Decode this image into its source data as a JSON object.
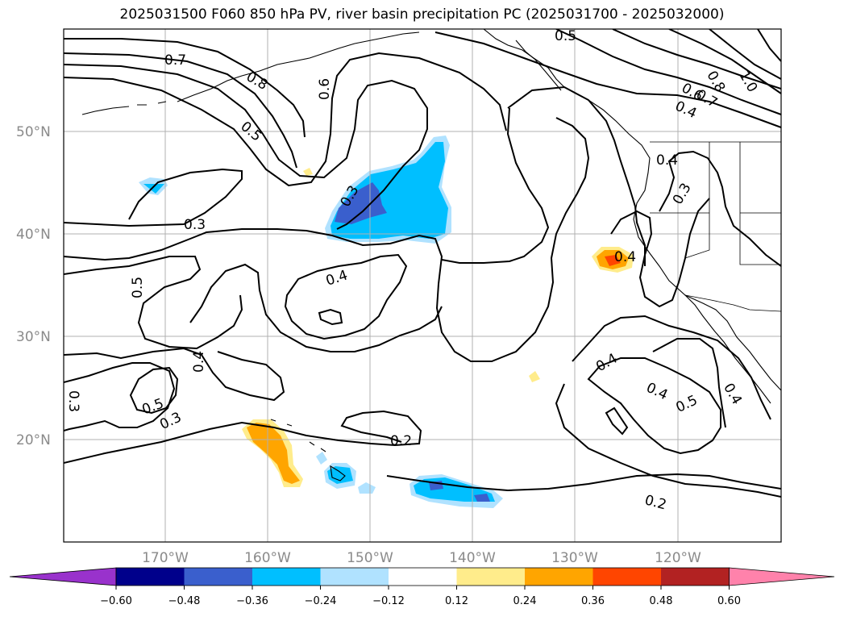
{
  "title": "2025031500 F060 850 hPa PV, river basin precipitation PC (2025031700 - 2025032000)",
  "map": {
    "extent": {
      "lon_min": -180,
      "lon_max": -110,
      "lat_min": 10,
      "lat_max": 60
    },
    "lat_ticks": [
      {
        "value": 50,
        "label": "50°N"
      },
      {
        "value": 40,
        "label": "40°N"
      },
      {
        "value": 30,
        "label": "30°N"
      },
      {
        "value": 20,
        "label": "20°N"
      }
    ],
    "lon_ticks": [
      {
        "value": -170,
        "label": "170°W"
      },
      {
        "value": -160,
        "label": "160°W"
      },
      {
        "value": -150,
        "label": "150°W"
      },
      {
        "value": -140,
        "label": "140°W"
      },
      {
        "value": -130,
        "label": "130°W"
      },
      {
        "value": -120,
        "label": "120°W"
      }
    ],
    "gridlines": true,
    "contour_variable": "850 hPa PV",
    "contour_labels": [
      "0.5",
      "0.7",
      "0.8",
      "0.6",
      "0.5",
      "0.3",
      "0.3",
      "0.4",
      "0.5",
      "0.4",
      "0.5",
      "0.3",
      "0.3",
      "0.2",
      "0.4",
      "0.4",
      "0.5",
      "0.4",
      "0.2",
      "0.4",
      "0.3",
      "0.4",
      "0.8",
      "0.6",
      "0.7",
      "1.0",
      "0.4"
    ],
    "shaded_variable": "river basin precipitation PC"
  },
  "colorbar": {
    "ticks": [
      "−0.60",
      "−0.48",
      "−0.36",
      "−0.24",
      "−0.12",
      "0.12",
      "0.24",
      "0.36",
      "0.48",
      "0.60"
    ],
    "colors": [
      "#9932cc",
      "#00008b",
      "#3a5fcd",
      "#00bfff",
      "#b0e2ff",
      "#ffffff",
      "#ffec8b",
      "#ffa500",
      "#ff4500",
      "#b22222",
      "#ff82ab"
    ],
    "extend": "both"
  }
}
